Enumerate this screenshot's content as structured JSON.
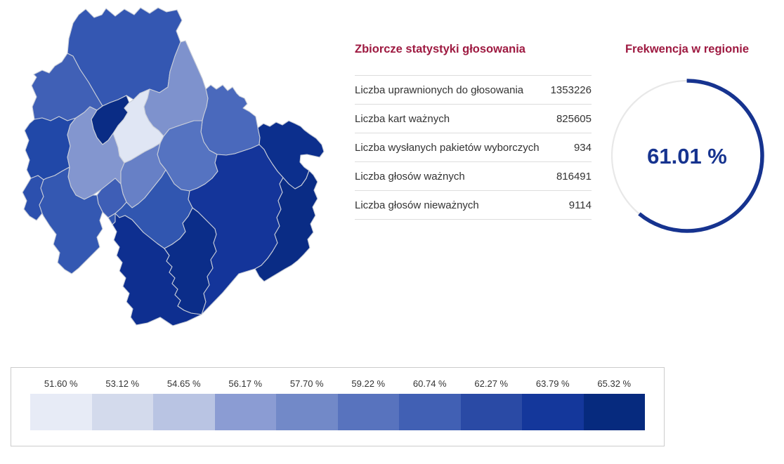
{
  "page": {
    "background": "#ffffff"
  },
  "colors": {
    "heading": "#9e1a41",
    "text": "#333333",
    "row_border": "#dddddd",
    "map_border": "#c9ced9",
    "legend_border": "#cccccc",
    "gauge_arc": "#16338f",
    "gauge_track": "#e8e8e8",
    "gauge_value_text": "#16338f"
  },
  "stats_panel": {
    "title": "Zbiorcze statystyki głosowania",
    "rows": [
      {
        "label": "Liczba uprawnionych do głosowania",
        "value": "1353226"
      },
      {
        "label": "Liczba kart ważnych",
        "value": "825605"
      },
      {
        "label": "Liczba wysłanych pakietów wyborczych",
        "value": "934"
      },
      {
        "label": "Liczba głosów ważnych",
        "value": "816491"
      },
      {
        "label": "Liczba głosów nieważnych",
        "value": "9114"
      }
    ]
  },
  "gauge": {
    "title": "Frekwencja w regionie",
    "value_percent": 61.01,
    "value_label": "61.01 %"
  },
  "legend": {
    "items": [
      {
        "label": "51.60 %",
        "color": "#e7ebf6"
      },
      {
        "label": "53.12 %",
        "color": "#d3daec"
      },
      {
        "label": "54.65 %",
        "color": "#b9c4e3"
      },
      {
        "label": "56.17 %",
        "color": "#8b9cd3"
      },
      {
        "label": "57.70 %",
        "color": "#7289c8"
      },
      {
        "label": "59.22 %",
        "color": "#5873be"
      },
      {
        "label": "60.74 %",
        "color": "#4160b4"
      },
      {
        "label": "62.27 %",
        "color": "#2a4aa5"
      },
      {
        "label": "63.79 %",
        "color": "#14379b"
      },
      {
        "label": "65.32 %",
        "color": "#062a7e"
      }
    ]
  },
  "map": {
    "regions": [
      {
        "name": "region-1",
        "color": "#3457b2"
      },
      {
        "name": "region-2",
        "color": "#4060b6"
      },
      {
        "name": "region-3",
        "color": "#2148a8"
      },
      {
        "name": "region-4",
        "color": "#0a2c85"
      },
      {
        "name": "region-5",
        "color": "#e0e6f4"
      },
      {
        "name": "region-6",
        "color": "#7e92cd"
      },
      {
        "name": "region-7",
        "color": "#4a69bc"
      },
      {
        "name": "region-8",
        "color": "#0c2f8d"
      },
      {
        "name": "region-9",
        "color": "#5573c1"
      },
      {
        "name": "region-10",
        "color": "#8396cf"
      },
      {
        "name": "region-11",
        "color": "#6780c6"
      },
      {
        "name": "region-12",
        "color": "#3e5eb6"
      },
      {
        "name": "region-13",
        "color": "#2c50ae"
      },
      {
        "name": "region-14",
        "color": "#3458b2"
      },
      {
        "name": "region-15",
        "color": "#3156b0"
      },
      {
        "name": "region-16",
        "color": "#0e2f90"
      },
      {
        "name": "region-17",
        "color": "#0b2d89"
      },
      {
        "name": "region-18",
        "color": "#14359a"
      },
      {
        "name": "region-19",
        "color": "#0a2c85"
      }
    ]
  },
  "chart_data": [
    {
      "type": "table",
      "title": "Zbiorcze statystyki głosowania",
      "rows": [
        [
          "Liczba uprawnionych do głosowania",
          1353226
        ],
        [
          "Liczba kart ważnych",
          825605
        ],
        [
          "Liczba wysłanych pakietów wyborczych",
          934
        ],
        [
          "Liczba głosów ważnych",
          816491
        ],
        [
          "Liczba głosów nieważnych",
          9114
        ]
      ]
    },
    {
      "type": "pie",
      "subtype": "donut-gauge",
      "title": "Frekwencja w regionie",
      "labels": [
        "frekwencja",
        "pozostali"
      ],
      "values": [
        61.01,
        38.99
      ],
      "annotation": "61.01 %",
      "colors": [
        "#16338f",
        "#e8e8e8"
      ],
      "start_angle": "top",
      "direction": "clockwise"
    },
    {
      "type": "heatmap",
      "subtype": "choropleth-color-scale",
      "title": "",
      "categories": [
        "51.60 %",
        "53.12 %",
        "54.65 %",
        "56.17 %",
        "57.70 %",
        "59.22 %",
        "60.74 %",
        "62.27 %",
        "63.79 %",
        "65.32 %"
      ],
      "values": [
        51.6,
        53.12,
        54.65,
        56.17,
        57.7,
        59.22,
        60.74,
        62.27,
        63.79,
        65.32
      ],
      "colors": [
        "#e7ebf6",
        "#d3daec",
        "#b9c4e3",
        "#8b9cd3",
        "#7289c8",
        "#5873be",
        "#4160b4",
        "#2a4aa5",
        "#14379b",
        "#062a7e"
      ],
      "legend_position": "bottom"
    }
  ]
}
